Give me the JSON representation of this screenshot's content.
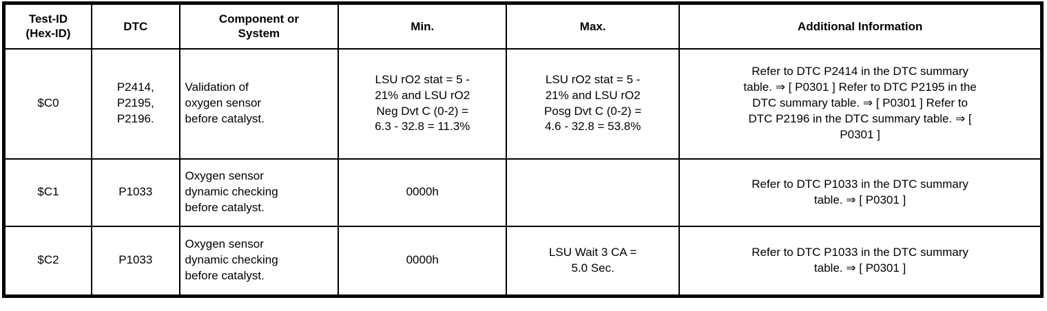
{
  "table": {
    "headers": [
      "Test-ID\n(Hex-ID)",
      "DTC",
      "Component or\nSystem",
      "Min.",
      "Max.",
      "Additional Information"
    ],
    "rows": [
      {
        "test_id": "$C0",
        "dtc": "P2414,\nP2195,\nP2196.",
        "component": "Validation of\noxygen sensor\nbefore catalyst.",
        "min": "LSU rO2 stat = 5 -\n21% and LSU rO2\nNeg Dvt C (0-2) =\n6.3 - 32.8 = 11.3%",
        "max": "LSU rO2 stat = 5 -\n21% and LSU rO2\nPosg Dvt C (0-2) =\n4.6 - 32.8 = 53.8%",
        "additional_info": "Refer to DTC P2414 in the DTC summary\ntable. ⇒ [ P0301 ] Refer to DTC P2195 in the\nDTC summary table. ⇒ [ P0301 ] Refer to\nDTC P2196 in the DTC summary table. ⇒ [\nP0301 ]"
      },
      {
        "test_id": "$C1",
        "dtc": "P1033",
        "component": "Oxygen sensor\ndynamic checking\nbefore catalyst.",
        "min": "0000h",
        "max": "",
        "additional_info": "Refer to DTC P1033 in the DTC summary\ntable. ⇒ [ P0301 ]"
      },
      {
        "test_id": "$C2",
        "dtc": "P1033",
        "component": "Oxygen sensor\ndynamic checking\nbefore catalyst.",
        "min": "0000h",
        "max": "LSU Wait 3 CA =\n5.0 Sec.",
        "additional_info": "Refer to DTC P1033 in the DTC summary\ntable. ⇒ [ P0301 ]"
      }
    ]
  }
}
